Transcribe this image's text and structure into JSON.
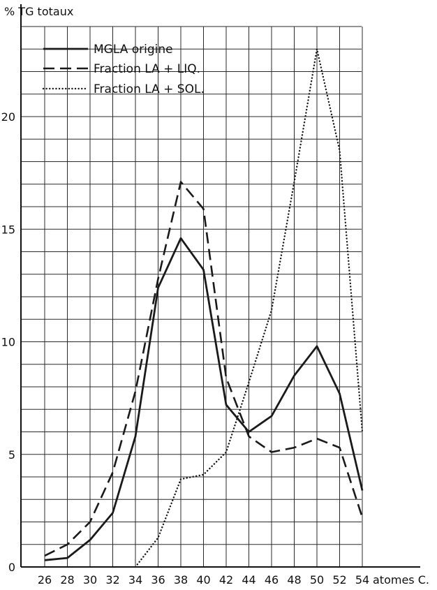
{
  "chart_data": {
    "type": "line",
    "title": "",
    "ylabel": "% TG totaux",
    "xlabel": "atomes C.",
    "x": [
      26,
      28,
      30,
      32,
      34,
      36,
      38,
      40,
      42,
      44,
      46,
      48,
      50,
      52,
      54
    ],
    "x_tick_labels": [
      "26",
      "28",
      "30",
      "32",
      "34",
      "36",
      "38",
      "40",
      "42",
      "44",
      "46",
      "48",
      "50",
      "52",
      "54"
    ],
    "y_tick_labels": [
      "0",
      "5",
      "10",
      "15",
      "20"
    ],
    "y_ticks": [
      0,
      5,
      10,
      15,
      20
    ],
    "ylim": [
      0,
      24
    ],
    "grid": true,
    "legend_position": "top-left",
    "series": [
      {
        "name": "MGLA origine",
        "style": "solid",
        "values": [
          0.3,
          0.4,
          1.2,
          2.4,
          5.8,
          12.4,
          14.6,
          13.2,
          7.2,
          6.0,
          6.7,
          8.5,
          9.8,
          7.7,
          3.4
        ]
      },
      {
        "name": "Fraction LA + LIQ.",
        "style": "dashed",
        "values": [
          0.5,
          1.0,
          2.0,
          4.2,
          7.8,
          12.8,
          17.1,
          15.9,
          8.4,
          5.8,
          5.1,
          5.3,
          5.7,
          5.3,
          2.2
        ]
      },
      {
        "name": "Fraction LA + SOL.",
        "style": "dotted",
        "values": [
          null,
          null,
          null,
          null,
          0.0,
          1.3,
          3.9,
          4.1,
          5.1,
          8.2,
          11.4,
          17.1,
          23.0,
          18.5,
          6.0
        ]
      }
    ],
    "colors": {
      "line": "#1a1a1a",
      "grid": "#2a2a2a",
      "background": "#ffffff"
    }
  }
}
